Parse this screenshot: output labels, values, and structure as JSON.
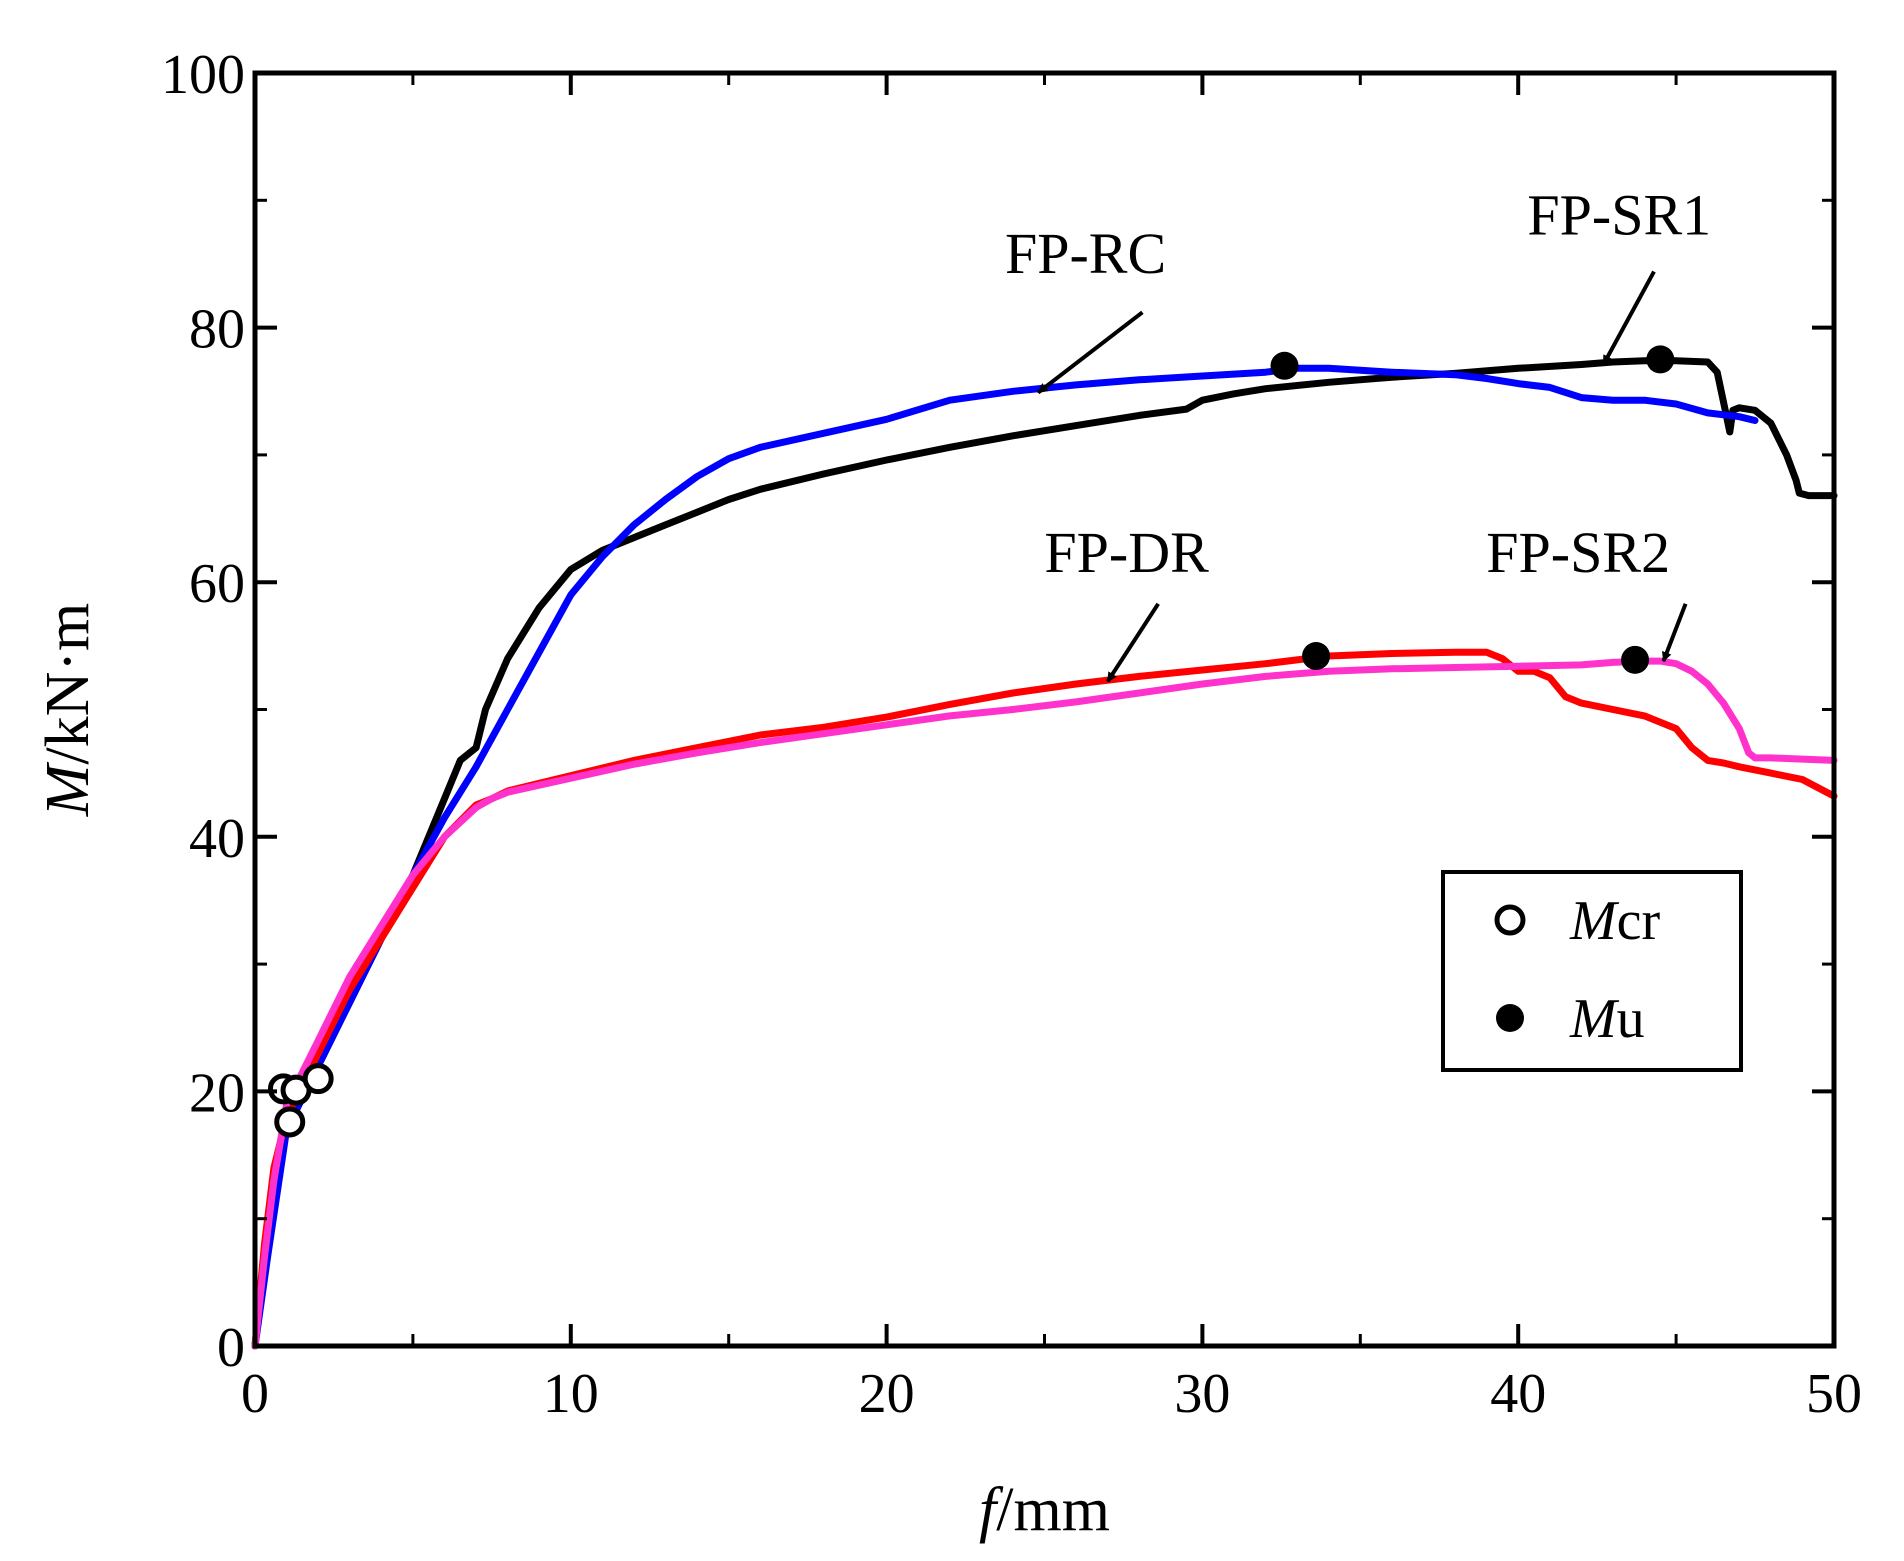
{
  "chart_data": {
    "type": "line",
    "title": "",
    "xlabel": {
      "italic": "f",
      "rest": "/mm"
    },
    "ylabel": {
      "italic": "M",
      "rest": "/kN·m"
    },
    "xlim": [
      0,
      50
    ],
    "ylim": [
      0,
      100
    ],
    "xticks": [
      0,
      10,
      20,
      30,
      40,
      50
    ],
    "yticks": [
      0,
      20,
      40,
      60,
      80,
      100
    ],
    "grid": false,
    "series": [
      {
        "name": "FP-SR1",
        "color": "#000000",
        "x": [
          0,
          0.3,
          0.6,
          1,
          2,
          3,
          4,
          5,
          6,
          6.5,
          7,
          7.3,
          8,
          9,
          10,
          11,
          12,
          13,
          14,
          15,
          16,
          18,
          20,
          22,
          24,
          26,
          28,
          29.5,
          30,
          31,
          32,
          34,
          36,
          38,
          40,
          42,
          43,
          44,
          45,
          46,
          46.3,
          46.6,
          46.7,
          46.8,
          47,
          47.5,
          48,
          48.5,
          48.8,
          48.9,
          49.2,
          50
        ],
        "y": [
          0,
          7,
          12,
          17,
          22,
          27,
          32,
          37,
          43,
          46,
          47,
          50,
          54,
          58,
          61,
          62.5,
          63.5,
          64.5,
          65.5,
          66.5,
          67.3,
          68.5,
          69.6,
          70.6,
          71.5,
          72.3,
          73.1,
          73.6,
          74.3,
          74.8,
          75.2,
          75.7,
          76.1,
          76.4,
          76.8,
          77.1,
          77.3,
          77.4,
          77.4,
          77.3,
          76.5,
          73,
          71.8,
          73.5,
          73.7,
          73.5,
          72.5,
          70,
          68,
          67,
          66.8,
          66.8
        ]
      },
      {
        "name": "FP-RC",
        "color": "#0000ff",
        "x": [
          0,
          0.4,
          1,
          2,
          3,
          4,
          5,
          6,
          7,
          8,
          9,
          10,
          11,
          12,
          13,
          14,
          15,
          16,
          18,
          20,
          22,
          24,
          26,
          28,
          30,
          32,
          33,
          34,
          36,
          38,
          39,
          40,
          41,
          42,
          43,
          44,
          45,
          46,
          47,
          47.5
        ],
        "y": [
          0,
          7,
          17,
          22,
          27,
          32,
          37,
          41.5,
          45.5,
          50,
          54.5,
          59,
          62,
          64.5,
          66.5,
          68.3,
          69.7,
          70.6,
          71.7,
          72.8,
          74.3,
          75,
          75.5,
          75.9,
          76.2,
          76.5,
          76.8,
          76.8,
          76.5,
          76.3,
          76,
          75.6,
          75.3,
          74.5,
          74.3,
          74.3,
          74,
          73.3,
          73,
          72.7
        ]
      },
      {
        "name": "FP-DR",
        "color": "#ff0000",
        "x": [
          0,
          0.3,
          0.6,
          1,
          2,
          3,
          4,
          5,
          6,
          7,
          7.5,
          8,
          10,
          12,
          14,
          16,
          18,
          20,
          22,
          24,
          26,
          28,
          30,
          32,
          33,
          34,
          36,
          38,
          39,
          39.5,
          40,
          40.5,
          41,
          41.5,
          42,
          43,
          44,
          45,
          45.5,
          46,
          46.5,
          47,
          48,
          49,
          50
        ],
        "y": [
          0,
          8,
          14,
          18,
          23,
          28,
          32,
          36,
          40,
          42.5,
          43,
          43.6,
          44.8,
          46,
          47,
          48,
          48.6,
          49.4,
          50.4,
          51.3,
          52,
          52.6,
          53.1,
          53.6,
          53.9,
          54.2,
          54.4,
          54.5,
          54.5,
          54,
          53,
          53,
          52.5,
          51,
          50.5,
          50,
          49.5,
          48.5,
          47,
          46,
          45.8,
          45.5,
          45,
          44.5,
          43.2
        ]
      },
      {
        "name": "FP-SR2",
        "color": "#ff33cc",
        "x": [
          0,
          0.3,
          0.6,
          1,
          2,
          3,
          4,
          5,
          6,
          7,
          7.5,
          8,
          10,
          12,
          14,
          16,
          18,
          20,
          22,
          24,
          26,
          28,
          30,
          32,
          34,
          36,
          38,
          40,
          42,
          43,
          44,
          44.5,
          45,
          45.5,
          46,
          46.5,
          47,
          47.3,
          47.5,
          48,
          49,
          50
        ],
        "y": [
          0,
          7,
          13,
          19,
          24,
          29,
          33,
          37,
          40,
          42.3,
          43,
          43.5,
          44.6,
          45.7,
          46.6,
          47.4,
          48.1,
          48.8,
          49.5,
          50,
          50.6,
          51.3,
          52,
          52.6,
          53,
          53.2,
          53.3,
          53.4,
          53.5,
          53.7,
          53.8,
          53.8,
          53.6,
          53,
          52,
          50.5,
          48.5,
          46.6,
          46.2,
          46.2,
          46.1,
          46
        ]
      }
    ],
    "markers": {
      "Mcr": [
        {
          "x": 0.9,
          "y": 20.2
        },
        {
          "x": 1.3,
          "y": 20.1
        },
        {
          "x": 1.1,
          "y": 17.6
        },
        {
          "x": 2.0,
          "y": 21.0
        }
      ],
      "Mu": [
        {
          "x": 32.6,
          "y": 77.0
        },
        {
          "x": 44.5,
          "y": 77.5
        },
        {
          "x": 33.6,
          "y": 54.2
        },
        {
          "x": 43.7,
          "y": 53.9
        }
      ]
    },
    "annotations": [
      {
        "text": "FP-RC",
        "label_x": 26.3,
        "label_y": 84.3,
        "arrow_from": [
          28.1,
          81.2
        ],
        "arrow_to": [
          24.8,
          74.9
        ]
      },
      {
        "text": "FP-SR1",
        "label_x": 43.2,
        "label_y": 87.3,
        "arrow_from": [
          44.3,
          84.4
        ],
        "arrow_to": [
          42.7,
          77.1
        ]
      },
      {
        "text": "FP-DR",
        "label_x": 27.6,
        "label_y": 60.8,
        "arrow_from": [
          28.6,
          58.3
        ],
        "arrow_to": [
          27.0,
          52.2
        ]
      },
      {
        "text": "FP-SR2",
        "label_x": 41.9,
        "label_y": 60.8,
        "arrow_from": [
          45.3,
          58.3
        ],
        "arrow_to": [
          44.6,
          53.8
        ]
      }
    ],
    "legend": {
      "position": "lower-right",
      "items": [
        {
          "marker": "open-circle",
          "italic": "M",
          "rest": "cr"
        },
        {
          "marker": "filled-circle",
          "italic": "M",
          "rest": "u"
        }
      ]
    }
  }
}
